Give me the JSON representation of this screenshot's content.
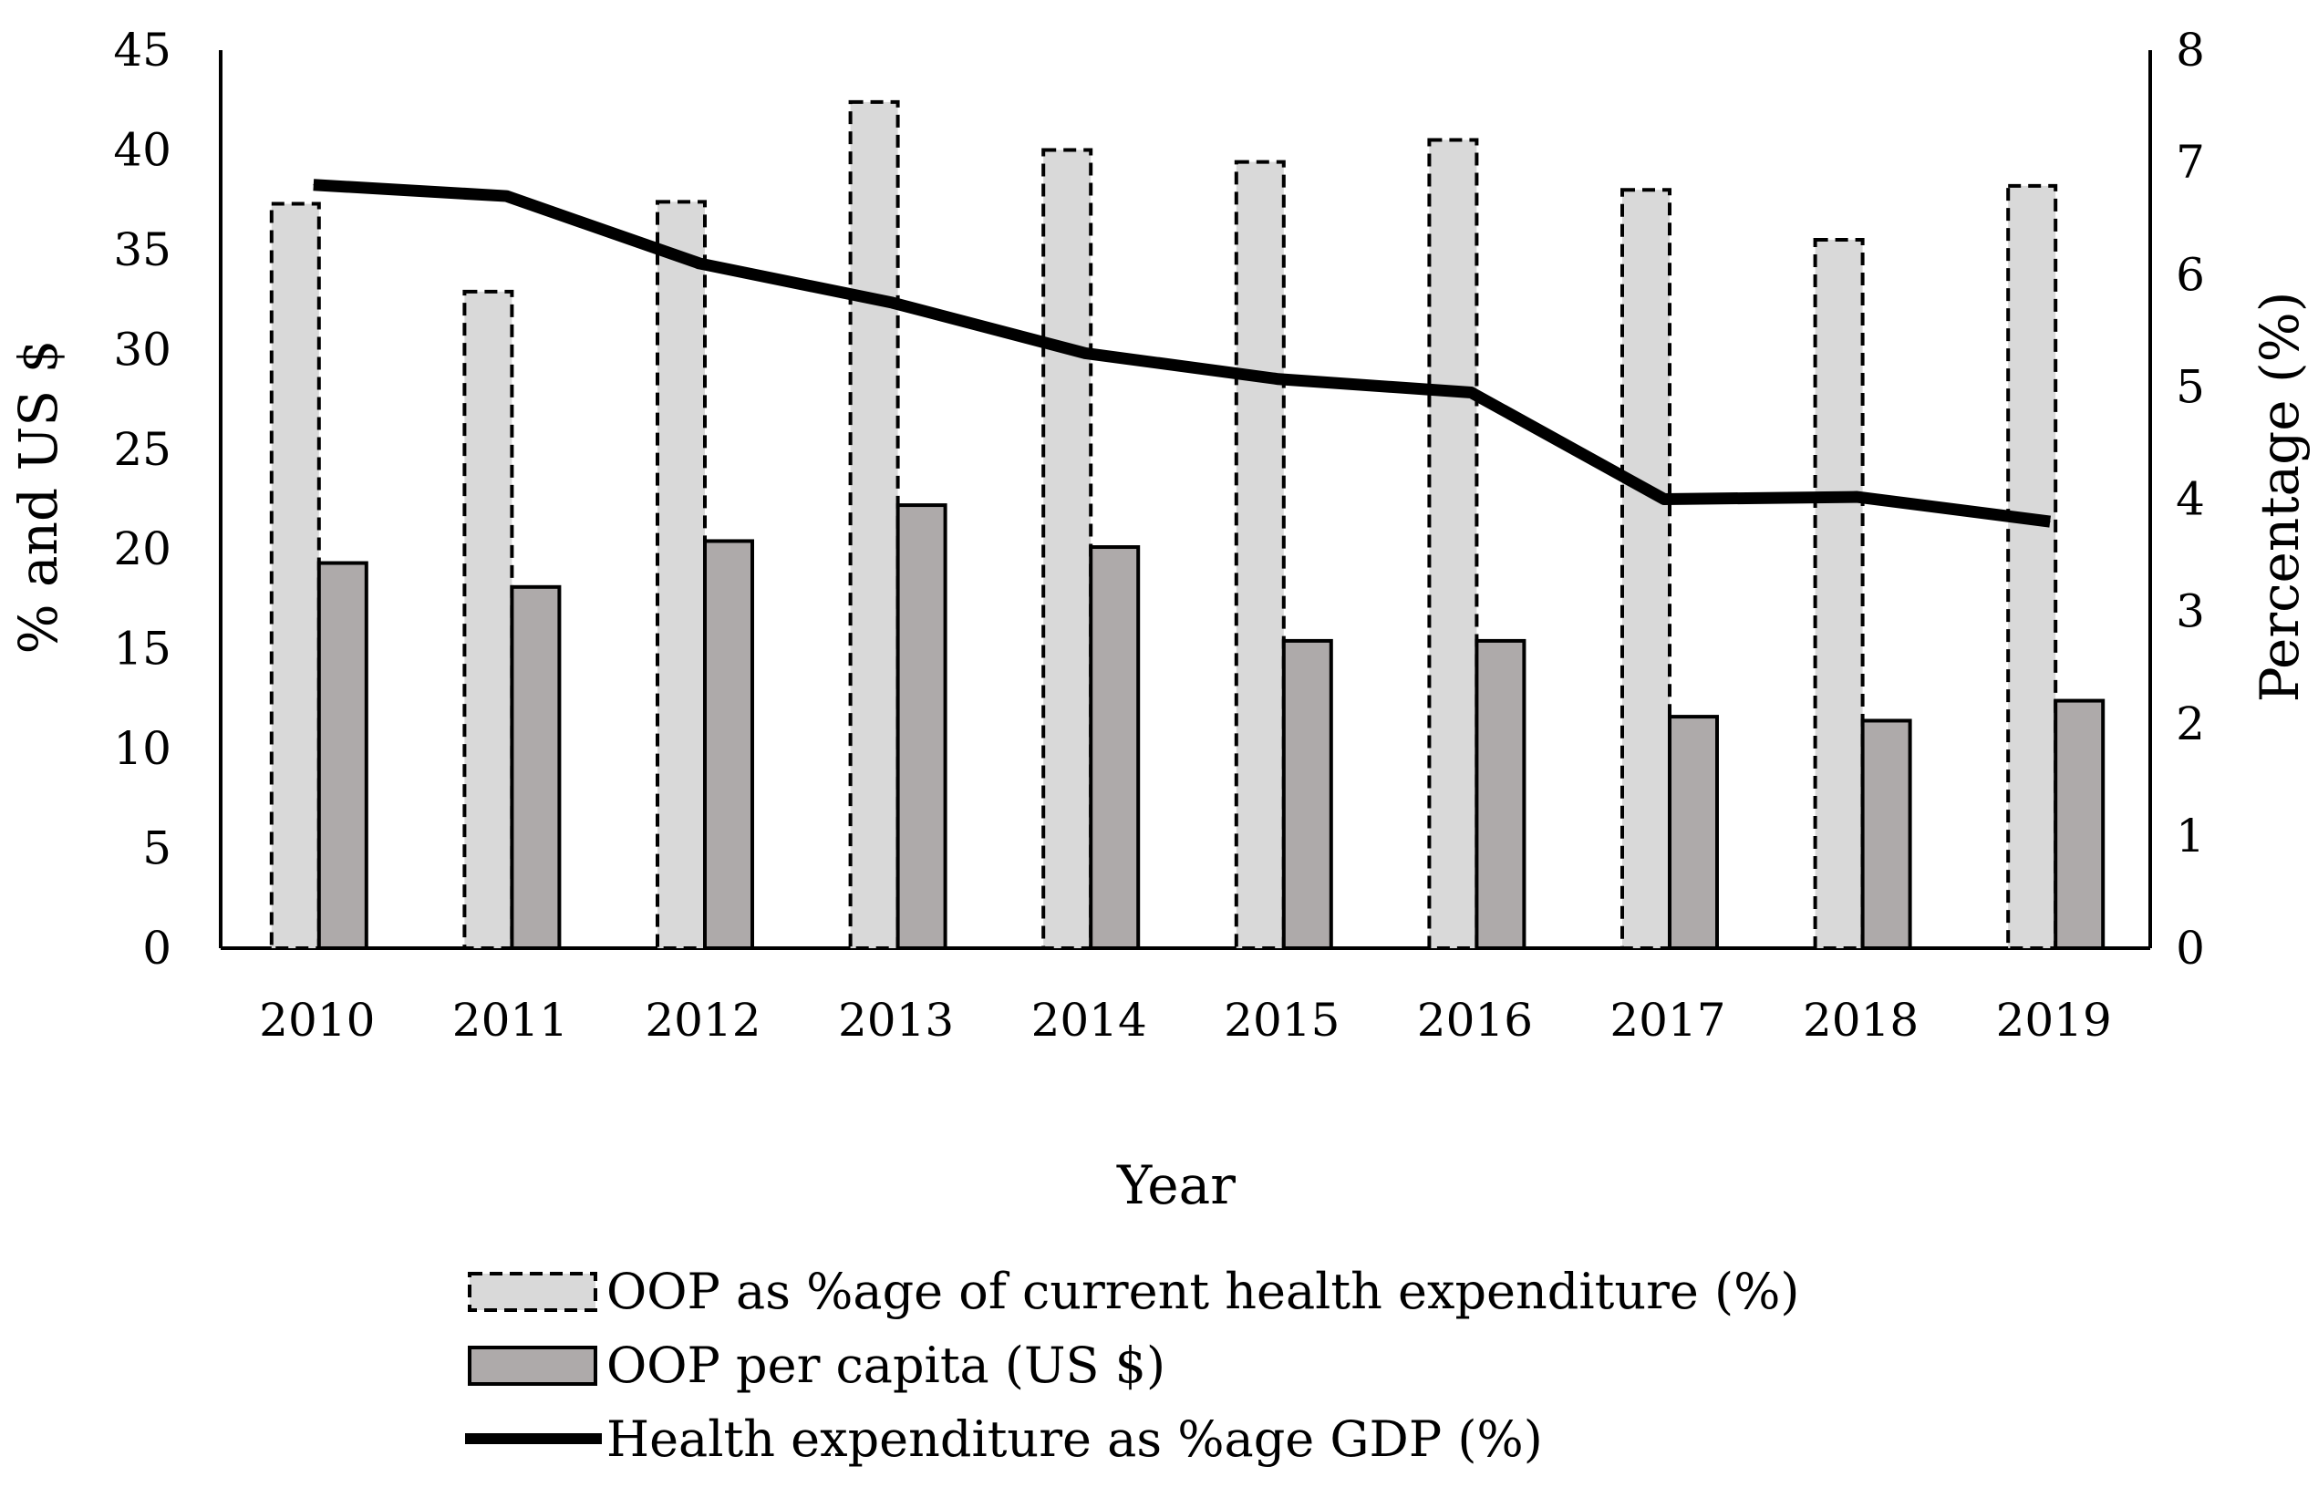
{
  "chart_data": {
    "type": "bar",
    "title": "",
    "categories": [
      "2010",
      "2011",
      "2012",
      "2013",
      "2014",
      "2015",
      "2016",
      "2017",
      "2018",
      "2019"
    ],
    "series": [
      {
        "name": "OOP as %age of current health expenditure (%)",
        "kind": "bar",
        "axis": "left",
        "values": [
          37.3,
          32.9,
          37.4,
          42.4,
          40.0,
          39.4,
          40.5,
          38.0,
          35.5,
          38.2
        ],
        "fill": "#d9d9d9",
        "stroke": "#000000",
        "dashed": true
      },
      {
        "name": "OOP per capita (US $)",
        "kind": "bar",
        "axis": "left",
        "values": [
          19.3,
          18.1,
          20.4,
          22.2,
          20.1,
          15.4,
          15.4,
          11.6,
          11.4,
          12.4
        ],
        "fill": "#aeaaaa",
        "stroke": "#000000",
        "dashed": false
      },
      {
        "name": "Health expenditure as %age GDP (%)",
        "kind": "line",
        "axis": "right",
        "values": [
          6.8,
          6.7,
          6.1,
          5.75,
          5.3,
          5.07,
          4.95,
          4.0,
          4.02,
          3.8
        ],
        "stroke": "#000000"
      }
    ],
    "xlabel": "Year",
    "ylabel": "% and US $",
    "y2label": "Percentage (%)",
    "ylim": [
      0,
      45
    ],
    "y2lim": [
      0,
      8
    ],
    "yticks": [
      "0",
      "5",
      "10",
      "15",
      "20",
      "25",
      "30",
      "35",
      "40",
      "45"
    ],
    "y2ticks": [
      "0",
      "1",
      "2",
      "3",
      "4",
      "5",
      "6",
      "7",
      "8"
    ],
    "grid": false,
    "legend_position": "bottom"
  }
}
